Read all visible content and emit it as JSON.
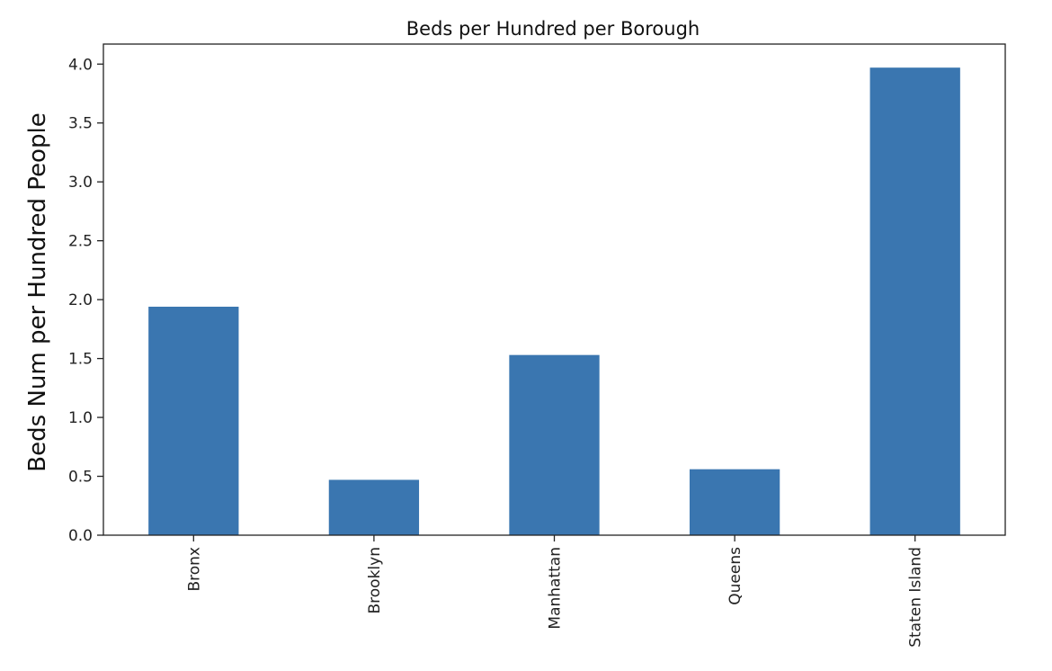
{
  "chart_data": {
    "type": "bar",
    "title": "Beds per Hundred per Borough",
    "xlabel": "",
    "ylabel": "Beds Num per Hundred People",
    "categories": [
      "Bronx",
      "Brooklyn",
      "Manhattan",
      "Queens",
      "Staten Island"
    ],
    "values": [
      1.94,
      0.47,
      1.53,
      0.56,
      3.97
    ],
    "ylim": [
      0,
      4.17
    ],
    "yticks": [
      "0.0",
      "0.5",
      "1.0",
      "1.5",
      "2.0",
      "2.5",
      "3.0",
      "3.5",
      "4.0"
    ],
    "grid": false,
    "legend": "none",
    "bar_color": "#3a76b0",
    "axis_color": "#222222"
  }
}
